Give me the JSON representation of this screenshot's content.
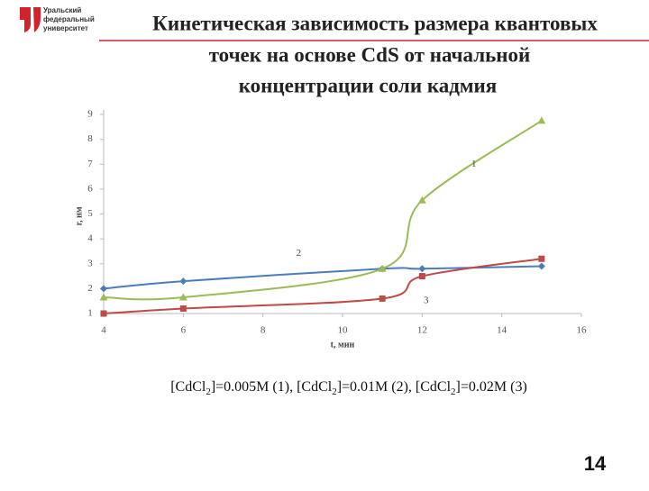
{
  "logo": [
    "Уральский",
    "федеральный",
    "университет"
  ],
  "page_number": "14",
  "chart_data": {
    "type": "line",
    "title_lines": [
      "Кинетическая зависимость размера квантовых",
      "точек на основе CdS от начальной",
      "концентрации соли кадмия"
    ],
    "x_label": "t, мин",
    "y_label": "r, нм",
    "xlim": [
      4,
      16
    ],
    "xticks": [
      4,
      6,
      8,
      10,
      12,
      14,
      16
    ],
    "ylim": [
      1,
      9
    ],
    "yticks": [
      1,
      2,
      3,
      4,
      5,
      6,
      7,
      8,
      9
    ],
    "series": [
      {
        "color": "#4a7ebb",
        "marker": "diamond",
        "x": [
          4,
          6,
          11,
          12,
          15
        ],
        "values": [
          2.0,
          2.3,
          2.8,
          2.8,
          2.9
        ]
      },
      {
        "color": "#9bbb59",
        "marker": "triangle",
        "x": [
          4,
          6,
          11,
          12,
          15
        ],
        "values": [
          1.65,
          1.65,
          2.8,
          5.55,
          8.75
        ]
      },
      {
        "color": "#be4b48",
        "marker": "square",
        "x": [
          4,
          6,
          11,
          12,
          15
        ],
        "values": [
          1.0,
          1.2,
          1.6,
          2.5,
          3.2
        ]
      }
    ],
    "annotations": [
      {
        "text": "1",
        "x": 13.3,
        "y": 7.0
      },
      {
        "text": "2",
        "x": 8.9,
        "y": 3.4
      },
      {
        "text": "3",
        "x": 12.1,
        "y": 1.5
      }
    ],
    "caption_parts": [
      "[CdCl",
      "2",
      "]=0.005M (1), [CdCl",
      "2",
      "]=0.01M (2), [CdCl",
      "2",
      "]=0.02M (3)"
    ]
  }
}
